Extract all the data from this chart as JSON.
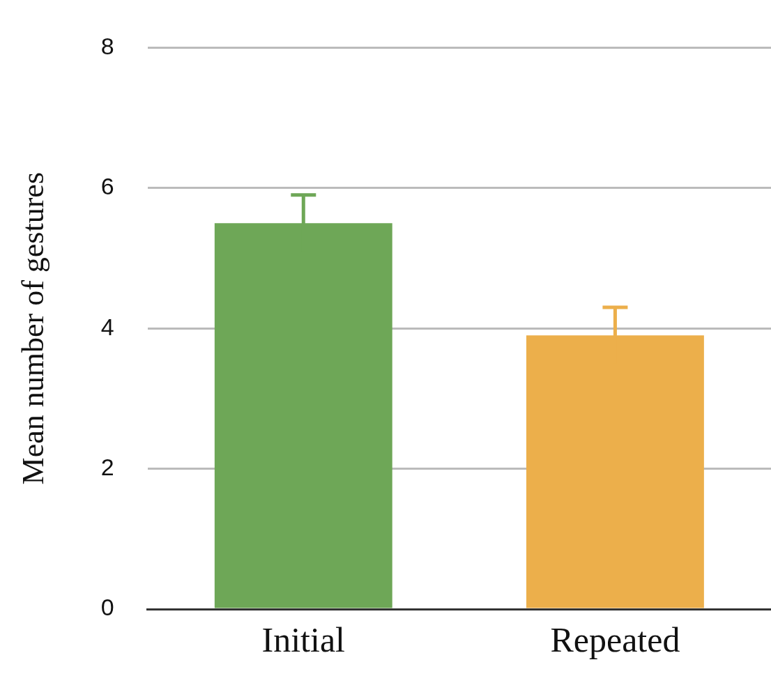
{
  "chart_data": {
    "type": "bar",
    "ylabel": "Mean number of gestures",
    "categories": [
      "Initial",
      "Repeated"
    ],
    "values": [
      5.5,
      3.9
    ],
    "colors": [
      "#6ea757",
      "#ecaf4b"
    ],
    "errors": [
      0.4,
      0.4
    ],
    "ylim": [
      0,
      8
    ],
    "yticks": [
      0,
      2,
      4,
      6,
      8
    ],
    "grid": "y",
    "legend": false
  }
}
